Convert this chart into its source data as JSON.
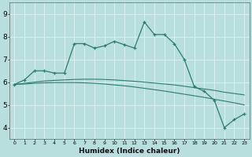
{
  "xlabel": "Humidex (Indice chaleur)",
  "ylabel": "",
  "background_color": "#b8dede",
  "grid_color": "#d8f0f0",
  "line_color": "#2d7d6e",
  "x_values": [
    0,
    1,
    2,
    3,
    4,
    5,
    6,
    7,
    8,
    9,
    10,
    11,
    12,
    13,
    14,
    15,
    16,
    17,
    18,
    19,
    20,
    21,
    22,
    23
  ],
  "curve1": [
    5.9,
    6.1,
    6.5,
    6.5,
    6.4,
    6.4,
    7.7,
    7.7,
    7.5,
    7.6,
    7.8,
    7.65,
    7.5,
    8.65,
    8.1,
    8.1,
    7.7,
    7.0,
    5.8,
    5.6,
    5.2,
    4.0,
    4.35,
    4.6
  ],
  "curve2_linear1": [
    5.9,
    5.95,
    6.0,
    6.05,
    6.08,
    6.1,
    6.12,
    6.13,
    6.13,
    6.12,
    6.1,
    6.07,
    6.04,
    6.0,
    5.96,
    5.92,
    5.88,
    5.82,
    5.76,
    5.7,
    5.64,
    5.56,
    5.5,
    5.44
  ],
  "curve2_linear2": [
    5.9,
    5.92,
    5.95,
    5.97,
    5.98,
    5.98,
    5.98,
    5.97,
    5.95,
    5.92,
    5.88,
    5.84,
    5.79,
    5.73,
    5.67,
    5.61,
    5.54,
    5.47,
    5.4,
    5.33,
    5.25,
    5.17,
    5.09,
    5.0
  ],
  "ylim": [
    3.5,
    9.5
  ],
  "xlim": [
    -0.5,
    23.5
  ],
  "yticks": [
    4,
    5,
    6,
    7,
    8,
    9
  ],
  "xtick_labels": [
    "0",
    "1",
    "2",
    "3",
    "4",
    "5",
    "6",
    "7",
    "8",
    "9",
    "10",
    "11",
    "12",
    "13",
    "14",
    "15",
    "16",
    "17",
    "18",
    "19",
    "20",
    "21",
    "22",
    "23"
  ]
}
